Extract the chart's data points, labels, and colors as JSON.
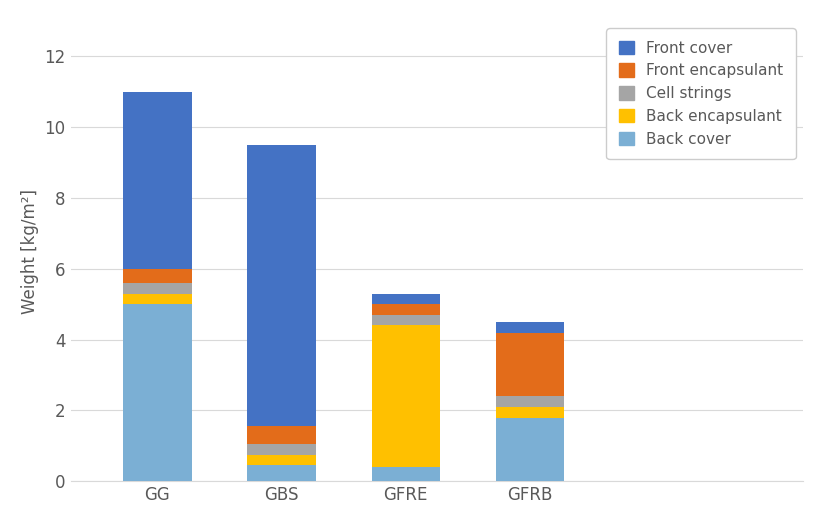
{
  "categories": [
    "GG",
    "GBS",
    "GFRE",
    "GFRB"
  ],
  "layers": {
    "Back cover": [
      5.0,
      0.45,
      0.4,
      1.8
    ],
    "Back encapsulant": [
      0.3,
      0.3,
      4.0,
      0.3
    ],
    "Cell strings": [
      0.3,
      0.3,
      0.3,
      0.3
    ],
    "Front encapsulant": [
      0.4,
      0.5,
      0.3,
      1.8
    ],
    "Front cover": [
      5.0,
      7.95,
      0.3,
      0.3
    ]
  },
  "colors": {
    "Back cover": "#7BAFD4",
    "Back encapsulant": "#FFC000",
    "Cell strings": "#A5A5A5",
    "Front encapsulant": "#E36C1A",
    "Front cover": "#4472C4"
  },
  "legend_order": [
    "Front cover",
    "Front encapsulant",
    "Cell strings",
    "Back encapsulant",
    "Back cover"
  ],
  "ylabel": "Weight [kg/m²]",
  "ylim": [
    0,
    13
  ],
  "yticks": [
    0,
    2,
    4,
    6,
    8,
    10,
    12
  ],
  "bar_width": 0.55,
  "background_color": "#FFFFFF",
  "grid_color": "#D9D9D9",
  "font_color": "#595959",
  "font_size": 12,
  "legend_font_size": 11
}
